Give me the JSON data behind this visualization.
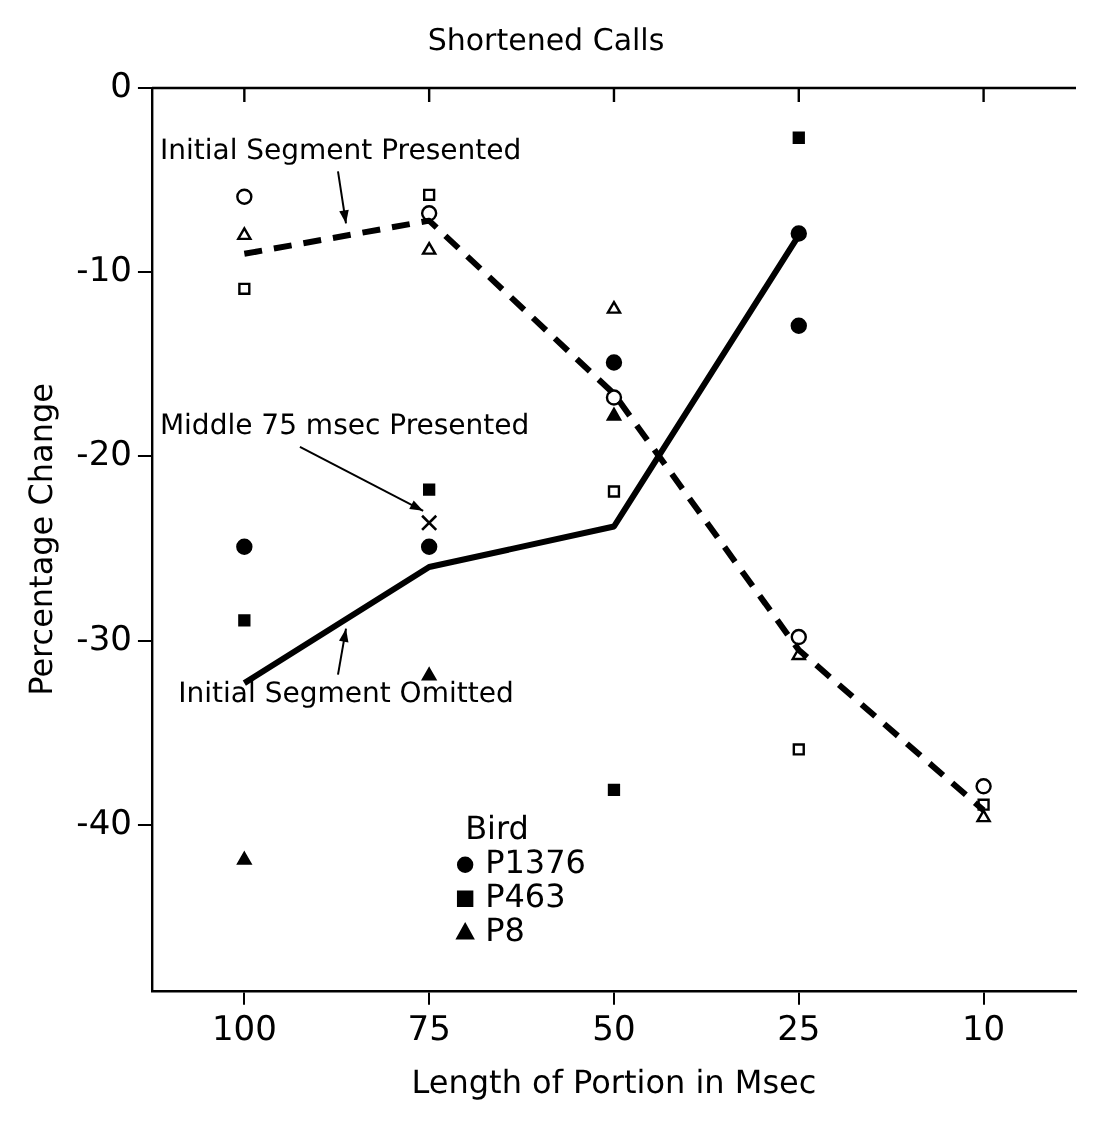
{
  "chart_data": {
    "type": "scatter",
    "title": "Shortened Calls",
    "xlabel": "Length of Portion in Msec",
    "ylabel": "Percentage Change",
    "legend_title": "Bird",
    "legend": "bottom",
    "categories": [
      "100",
      "75",
      "50",
      "25",
      "10"
    ],
    "ylim": [
      -49,
      0
    ],
    "yticks": [
      0,
      -10,
      -20,
      -30,
      -40
    ],
    "annotations": [
      {
        "text": "Initial Segment Presented",
        "y": -8.0
      },
      {
        "text": "Middle 75 msec Presented",
        "x": "75",
        "y": -23.6
      },
      {
        "text": "Initial Segment Omitted",
        "y": -28.8
      }
    ],
    "series": [
      {
        "type": "line",
        "color": "#000000",
        "line_style": "dashed",
        "marker": "none",
        "values": [
          -9.0,
          -7.2,
          -16.6,
          -30.5,
          -39.2
        ]
      },
      {
        "type": "line",
        "color": "#000000",
        "line_style": "solid",
        "marker": "none",
        "values": [
          -32.3,
          -26.0,
          -23.8,
          -8.0,
          null
        ]
      },
      {
        "color": "#ffffff",
        "marker": "circle",
        "values": [
          -5.9,
          -6.8,
          -16.8,
          -29.8,
          -37.9
        ]
      },
      {
        "color": "#ffffff",
        "marker": "square",
        "values": [
          -10.9,
          -5.8,
          -21.9,
          -35.9,
          -38.9
        ]
      },
      {
        "color": "#ffffff",
        "marker": "triangle",
        "values": [
          -8.0,
          -8.8,
          -12.0,
          -30.8,
          -39.6
        ]
      },
      {
        "name": "P1376",
        "color": "#000000",
        "marker": "circle",
        "x": [
          "100",
          "75",
          "50",
          "25",
          "25"
        ],
        "values": [
          -24.9,
          -24.9,
          -14.9,
          -7.9,
          -12.9
        ]
      },
      {
        "name": "P463",
        "color": "#000000",
        "marker": "square",
        "x": [
          "100",
          "75",
          "50",
          "25"
        ],
        "values": [
          -28.9,
          -21.8,
          -38.1,
          -2.7
        ]
      },
      {
        "name": "P8",
        "color": "#000000",
        "marker": "triangle",
        "x": [
          "100",
          "75",
          "50"
        ],
        "values": [
          -41.9,
          -31.9,
          -17.8
        ]
      },
      {
        "color": "#000000",
        "marker": "cross",
        "x": [
          "75"
        ],
        "values": [
          -23.6
        ]
      }
    ]
  }
}
